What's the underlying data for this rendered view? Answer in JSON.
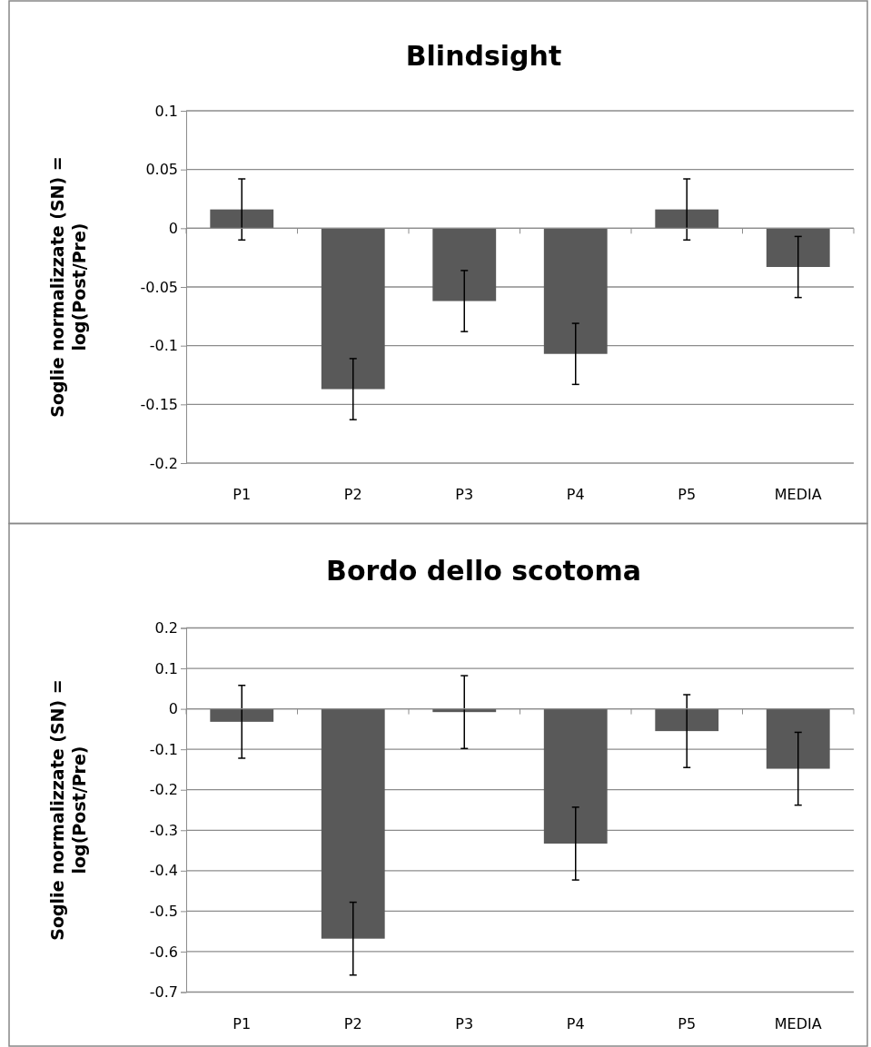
{
  "chart_data": [
    {
      "type": "bar",
      "title": "Blindsight",
      "ylabel": "Soglie normalizzate (SN) =\nlog(Post/Pre)",
      "categories": [
        "P1",
        "P2",
        "P3",
        "P4",
        "P5",
        "MEDIA"
      ],
      "values": [
        0.016,
        -0.137,
        -0.062,
        -0.107,
        0.016,
        -0.033
      ],
      "errors": [
        0.026,
        0.026,
        0.026,
        0.026,
        0.026,
        0.026
      ],
      "color": "#595959",
      "ylim": [
        -0.2,
        0.1
      ],
      "yticks": [
        {
          "value": -0.2,
          "label": "-0.2"
        },
        {
          "value": -0.15,
          "label": "-0.15"
        },
        {
          "value": -0.1,
          "label": "-0.1"
        },
        {
          "value": -0.05,
          "label": "-0.05"
        },
        0,
        0.05,
        0.1
      ],
      "grid": "y"
    },
    {
      "type": "bar",
      "title": "Bordo dello scotoma",
      "ylabel": "Soglie normalizzate (SN) =\nlog(Post/Pre)",
      "categories": [
        "P1",
        "P2",
        "P3",
        "P4",
        "P5",
        "MEDIA"
      ],
      "values": [
        -0.032,
        -0.568,
        -0.008,
        -0.333,
        -0.055,
        -0.148
      ],
      "errors": [
        0.09,
        0.09,
        0.09,
        0.09,
        0.09,
        0.09
      ],
      "color": "#595959",
      "ylim": [
        -0.7,
        0.2
      ],
      "yticks": [
        {
          "value": -0.7,
          "label": "-0.7"
        },
        {
          "value": -0.6,
          "label": "-0.6"
        },
        {
          "value": -0.5,
          "label": "-0.5"
        },
        {
          "value": -0.4,
          "label": "-0.4"
        },
        {
          "value": -0.3,
          "label": "-0.3"
        },
        {
          "value": -0.2,
          "label": "-0.2"
        },
        {
          "value": -0.1,
          "label": "-0.1"
        },
        0,
        0.1,
        0.2
      ],
      "grid": "y"
    }
  ]
}
